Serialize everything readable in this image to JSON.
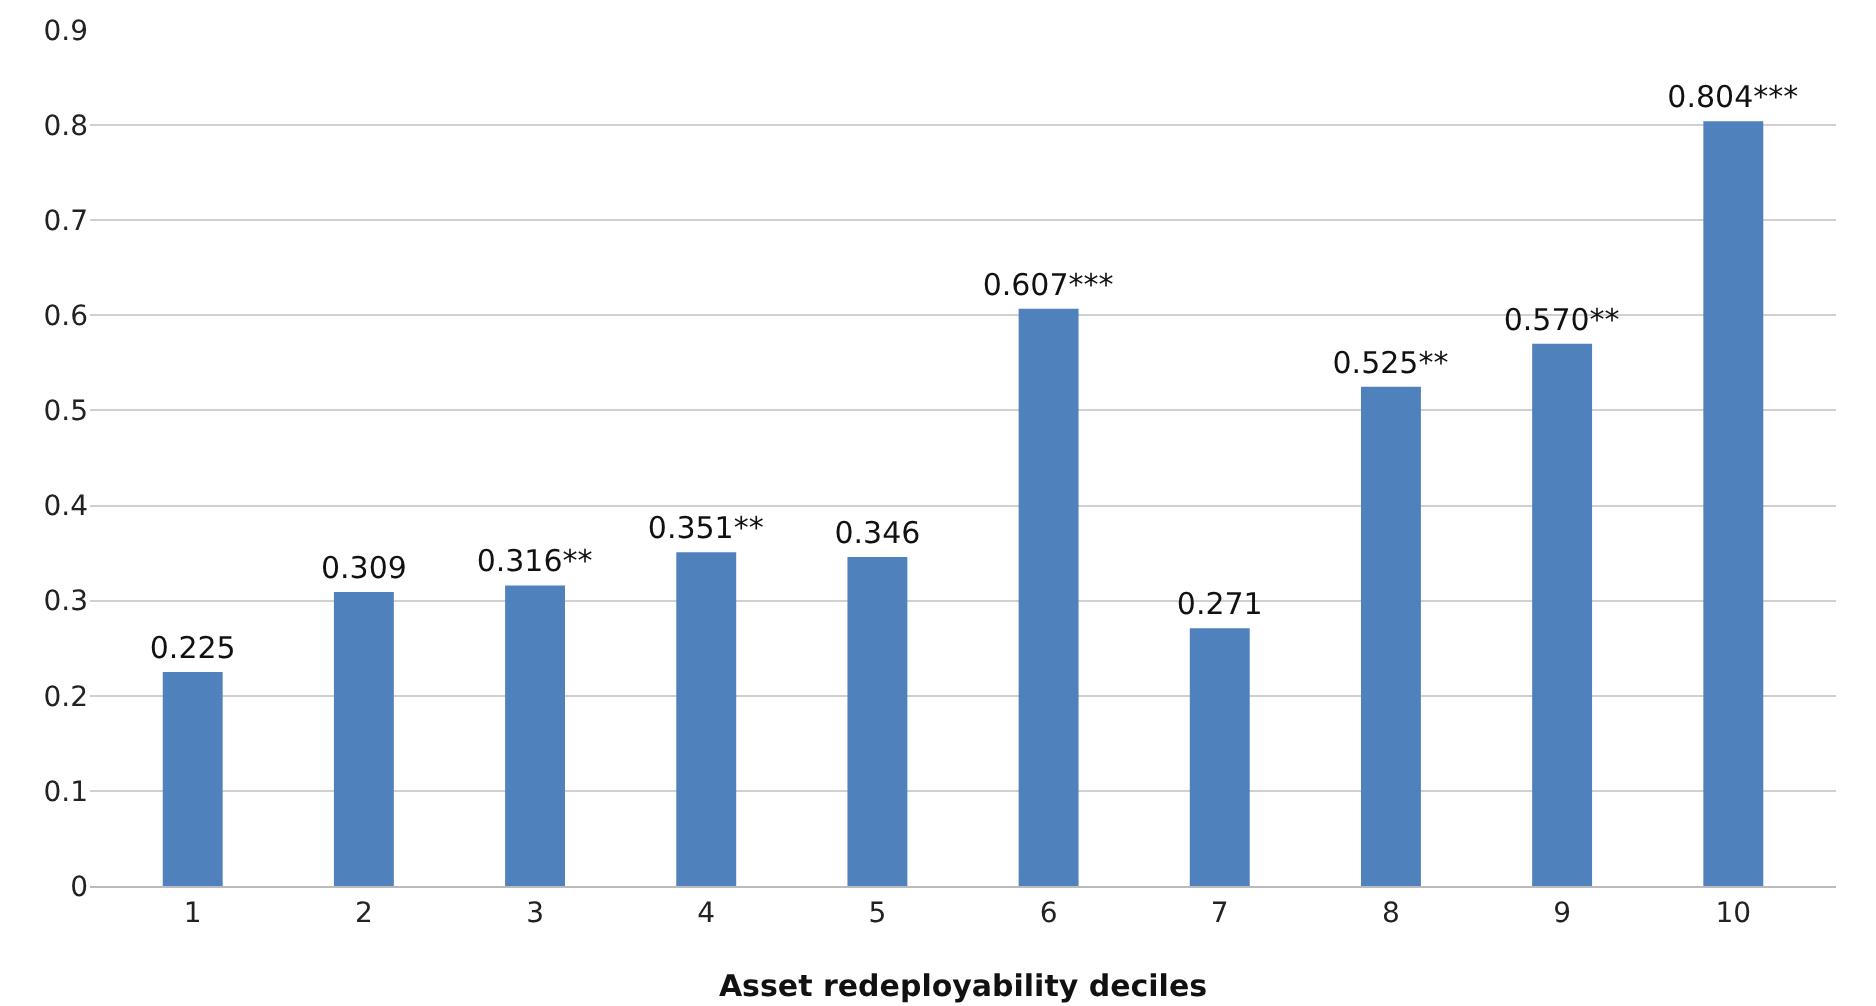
{
  "chart_data": {
    "type": "bar",
    "xlabel": "Asset redeployability deciles",
    "categories": [
      "1",
      "2",
      "3",
      "4",
      "5",
      "6",
      "7",
      "8",
      "9",
      "10"
    ],
    "values": [
      0.225,
      0.309,
      0.316,
      0.351,
      0.346,
      0.607,
      0.271,
      0.525,
      0.57,
      0.804
    ],
    "value_labels": [
      "0.225",
      "0.309",
      "0.316**",
      "0.351**",
      "0.346",
      "0.607***",
      "0.271",
      "0.525**",
      "0.570**",
      "0.804***"
    ],
    "color": "#4f81bd",
    "ylim": [
      0,
      0.9
    ],
    "yticks": [
      0,
      0.1,
      0.2,
      0.3,
      0.4,
      0.5,
      0.6,
      0.7,
      0.8,
      0.9
    ],
    "grid": "y",
    "legend": false
  }
}
